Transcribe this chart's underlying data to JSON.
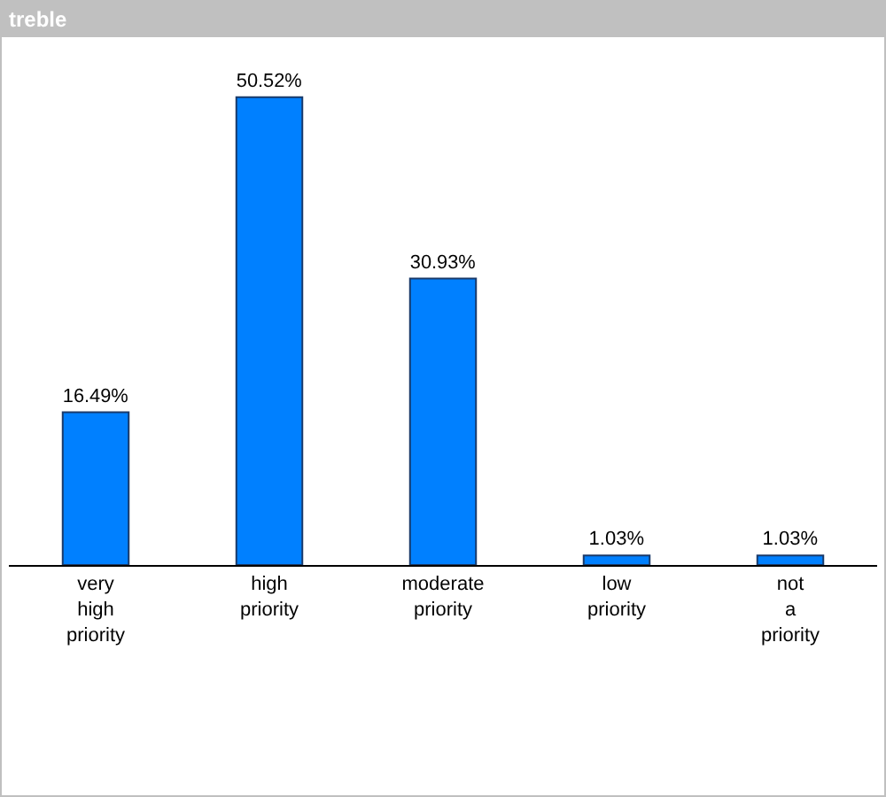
{
  "chart_data": {
    "type": "bar",
    "title": "treble",
    "categories": [
      "very high priority",
      "high priority",
      "moderate priority",
      "low priority",
      "not a priority"
    ],
    "values": [
      16.49,
      50.52,
      30.93,
      1.03,
      1.03
    ],
    "value_labels": [
      "16.49%",
      "50.52%",
      "30.93%",
      "1.03%",
      "1.03%"
    ],
    "color": "#0080ff"
  }
}
